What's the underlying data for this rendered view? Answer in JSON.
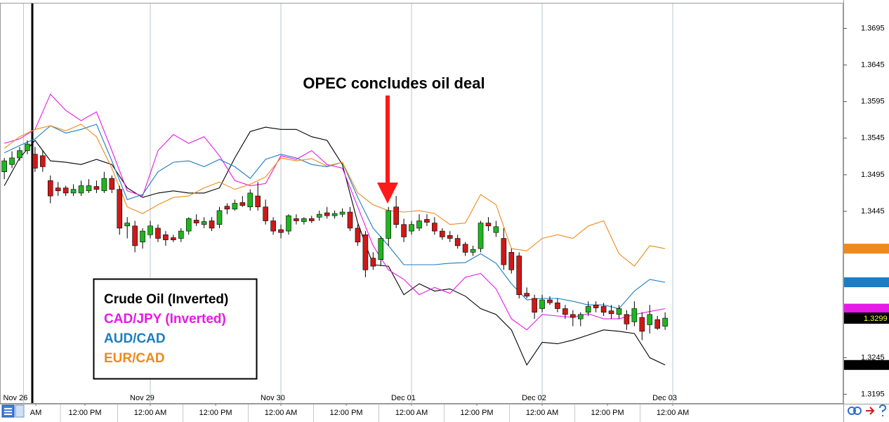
{
  "chart_data": {
    "type": "candlestick",
    "annotation": "OPEC concludes oil deal",
    "xlim": [
      -0.56,
      109.2
    ],
    "ylim": [
      1.3182,
      1.373
    ],
    "yticks": [
      1.3195,
      1.3245,
      1.3445,
      1.3495,
      1.3545,
      1.3595,
      1.3645,
      1.3695
    ],
    "date_ticks": [
      {
        "value": 2.5,
        "label": "Nov 26"
      },
      {
        "value": 19,
        "label": "Nov 29"
      },
      {
        "value": 36,
        "label": "Nov 30"
      },
      {
        "value": 53,
        "label": "Dec 01"
      },
      {
        "value": 70,
        "label": "Dec 02"
      },
      {
        "value": 87,
        "label": "Dec 03"
      }
    ],
    "time_ticks": [
      {
        "value": 4.1,
        "label": "AM"
      },
      {
        "value": 10.5,
        "label": "12:00 PM"
      },
      {
        "value": 19,
        "label": "12:00 AM"
      },
      {
        "value": 27.5,
        "label": "12:00 PM"
      },
      {
        "value": 36,
        "label": "12:00 AM"
      },
      {
        "value": 44.5,
        "label": "12:00 PM"
      },
      {
        "value": 53,
        "label": "12:00 AM"
      },
      {
        "value": 61.5,
        "label": "12:00 PM"
      },
      {
        "value": 70,
        "label": "12:00 AM"
      },
      {
        "value": 78.5,
        "label": "12:00 PM"
      },
      {
        "value": 87,
        "label": "12:00 AM"
      }
    ],
    "up_color": "#1fb51f",
    "down_color": "#d01818",
    "last_price": 1.3299,
    "ohlc": [
      [
        1.3499,
        1.3518,
        1.3489,
        1.3514
      ],
      [
        1.3509,
        1.3527,
        1.3504,
        1.3518
      ],
      [
        1.3518,
        1.3533,
        1.3514,
        1.3528
      ],
      [
        1.3528,
        1.3542,
        1.3523,
        1.3537
      ],
      [
        1.3523,
        1.3533,
        1.3499,
        1.3504
      ],
      [
        1.3521,
        1.3528,
        1.3499,
        1.3506
      ],
      [
        1.3487,
        1.3494,
        1.3456,
        1.3466
      ],
      [
        1.3477,
        1.3485,
        1.3466,
        1.3473
      ],
      [
        1.3477,
        1.348,
        1.3466,
        1.347
      ],
      [
        1.347,
        1.3482,
        1.3466,
        1.3475
      ],
      [
        1.347,
        1.3487,
        1.3466,
        1.348
      ],
      [
        1.3473,
        1.3489,
        1.347,
        1.348
      ],
      [
        1.3479,
        1.3487,
        1.347,
        1.3475
      ],
      [
        1.3473,
        1.3499,
        1.347,
        1.349
      ],
      [
        1.349,
        1.3494,
        1.347,
        1.3475
      ],
      [
        1.3475,
        1.348,
        1.3413,
        1.3422
      ],
      [
        1.3425,
        1.3437,
        1.3408,
        1.3429
      ],
      [
        1.3425,
        1.3432,
        1.3389,
        1.3398
      ],
      [
        1.3403,
        1.3422,
        1.3394,
        1.3418
      ],
      [
        1.3413,
        1.3432,
        1.3408,
        1.3425
      ],
      [
        1.3422,
        1.3427,
        1.3403,
        1.3408
      ],
      [
        1.3413,
        1.3418,
        1.3398,
        1.3406
      ],
      [
        1.3409,
        1.3413,
        1.3403,
        1.3406
      ],
      [
        1.3408,
        1.3422,
        1.3403,
        1.3418
      ],
      [
        1.3418,
        1.3437,
        1.3413,
        1.3435
      ],
      [
        1.3433,
        1.3441,
        1.3425,
        1.3429
      ],
      [
        1.3427,
        1.3437,
        1.3422,
        1.3431
      ],
      [
        1.3432,
        1.3437,
        1.3418,
        1.3422
      ],
      [
        1.3427,
        1.3451,
        1.3422,
        1.3446
      ],
      [
        1.3452,
        1.3456,
        1.3441,
        1.3448
      ],
      [
        1.3448,
        1.3461,
        1.3446,
        1.3456
      ],
      [
        1.3457,
        1.3466,
        1.3451,
        1.3453
      ],
      [
        1.3451,
        1.3475,
        1.3446,
        1.347
      ],
      [
        1.3466,
        1.3485,
        1.3446,
        1.3451
      ],
      [
        1.3451,
        1.3461,
        1.3427,
        1.3432
      ],
      [
        1.3432,
        1.3437,
        1.3413,
        1.3418
      ],
      [
        1.342,
        1.3427,
        1.3408,
        1.3416
      ],
      [
        1.3418,
        1.3441,
        1.3413,
        1.3439
      ],
      [
        1.3435,
        1.3441,
        1.3427,
        1.3432
      ],
      [
        1.3431,
        1.3437,
        1.3427,
        1.3435
      ],
      [
        1.3435,
        1.3439,
        1.3429,
        1.3432
      ],
      [
        1.3437,
        1.3446,
        1.3432,
        1.3441
      ],
      [
        1.3443,
        1.3451,
        1.3435,
        1.3439
      ],
      [
        1.3439,
        1.3446,
        1.3435,
        1.3442
      ],
      [
        1.3441,
        1.3449,
        1.3437,
        1.3444
      ],
      [
        1.3444,
        1.3451,
        1.3418,
        1.3422
      ],
      [
        1.3422,
        1.3427,
        1.3398,
        1.3403
      ],
      [
        1.3413,
        1.3418,
        1.3355,
        1.3365
      ],
      [
        1.3381,
        1.3389,
        1.3365,
        1.337
      ],
      [
        1.3379,
        1.3411,
        1.337,
        1.3408
      ],
      [
        1.3408,
        1.3451,
        1.3398,
        1.3446
      ],
      [
        1.3451,
        1.3466,
        1.3422,
        1.3427
      ],
      [
        1.3427,
        1.3435,
        1.3403,
        1.341
      ],
      [
        1.3418,
        1.3432,
        1.3413,
        1.3427
      ],
      [
        1.3422,
        1.3441,
        1.3418,
        1.3432
      ],
      [
        1.3434,
        1.3441,
        1.3425,
        1.343
      ],
      [
        1.3429,
        1.3437,
        1.3413,
        1.3418
      ],
      [
        1.3418,
        1.3422,
        1.3406,
        1.341
      ],
      [
        1.3412,
        1.3418,
        1.3403,
        1.3408
      ],
      [
        1.3408,
        1.3413,
        1.3394,
        1.3398
      ],
      [
        1.34,
        1.3403,
        1.3384,
        1.3389
      ],
      [
        1.3389,
        1.3398,
        1.3384,
        1.3393
      ],
      [
        1.3394,
        1.3432,
        1.3389,
        1.3429
      ],
      [
        1.3429,
        1.3437,
        1.3418,
        1.3425
      ],
      [
        1.3416,
        1.3432,
        1.341,
        1.3424
      ],
      [
        1.3408,
        1.3422,
        1.3365,
        1.3372
      ],
      [
        1.3389,
        1.3394,
        1.336,
        1.3365
      ],
      [
        1.3384,
        1.3389,
        1.3326,
        1.3331
      ],
      [
        1.3333,
        1.3341,
        1.3326,
        1.3329
      ],
      [
        1.3326,
        1.3331,
        1.3298,
        1.3307
      ],
      [
        1.3312,
        1.3331,
        1.3307,
        1.3324
      ],
      [
        1.3324,
        1.3329,
        1.3317,
        1.332
      ],
      [
        1.332,
        1.3326,
        1.3307,
        1.3312
      ],
      [
        1.3312,
        1.3317,
        1.3298,
        1.3304
      ],
      [
        1.3304,
        1.331,
        1.3288,
        1.33
      ],
      [
        1.3298,
        1.3307,
        1.3288,
        1.3304
      ],
      [
        1.3307,
        1.3322,
        1.3302,
        1.3315
      ],
      [
        1.3317,
        1.3322,
        1.3307,
        1.3313
      ],
      [
        1.3315,
        1.332,
        1.3302,
        1.3307
      ],
      [
        1.3309,
        1.3317,
        1.3298,
        1.3305
      ],
      [
        1.3304,
        1.3317,
        1.3298,
        1.3312
      ],
      [
        1.3304,
        1.331,
        1.3283,
        1.3291
      ],
      [
        1.3294,
        1.3322,
        1.3288,
        1.3312
      ],
      [
        1.33,
        1.3307,
        1.3269,
        1.3281
      ],
      [
        1.329,
        1.3317,
        1.3278,
        1.3304
      ],
      [
        1.3297,
        1.3302,
        1.3283,
        1.3285
      ],
      [
        1.3288,
        1.3307,
        1.3283,
        1.3299
      ]
    ],
    "line_x": [
      0,
      2,
      4,
      6,
      8,
      10,
      12,
      14,
      16,
      18,
      20,
      22,
      24,
      26,
      28,
      30,
      32,
      34,
      36,
      38,
      40,
      42,
      44,
      46,
      48,
      50,
      52,
      54,
      56,
      58,
      60,
      62,
      64,
      66,
      68,
      70,
      72,
      74,
      76,
      78,
      80,
      82,
      84,
      86
    ],
    "series": [
      {
        "name": "Crude Oil (Inverted)",
        "color": "#000000",
        "values": [
          1.348,
          1.3518,
          1.3542,
          1.3514,
          1.3512,
          1.3509,
          1.3516,
          1.3509,
          1.3477,
          1.3464,
          1.347,
          1.3473,
          1.347,
          1.347,
          1.3477,
          1.3518,
          1.3554,
          1.356,
          1.3557,
          1.3557,
          1.3547,
          1.3542,
          1.3509,
          1.3429,
          1.3372,
          1.337,
          1.3331,
          1.3346,
          1.3336,
          1.3339,
          1.3329,
          1.3312,
          1.3304,
          1.3283,
          1.3235,
          1.3266,
          1.3264,
          1.3269,
          1.3276,
          1.3283,
          1.3281,
          1.3278,
          1.3245,
          1.3235
        ]
      },
      {
        "name": "CAD/JPY (Inverted)",
        "color": "#e619e6",
        "values": [
          1.3538,
          1.3544,
          1.3557,
          1.3605,
          1.3583,
          1.3569,
          1.3581,
          1.3528,
          1.3473,
          1.3466,
          1.3528,
          1.355,
          1.3538,
          1.3547,
          1.3521,
          1.3487,
          1.348,
          1.3483,
          1.3521,
          1.3516,
          1.3528,
          1.3509,
          1.3504,
          1.3451,
          1.3398,
          1.3365,
          1.3352,
          1.3331,
          1.3341,
          1.3333,
          1.3355,
          1.336,
          1.3339,
          1.3298,
          1.3283,
          1.3304,
          1.3302,
          1.33,
          1.3305,
          1.3298,
          1.3298,
          1.3304,
          1.3308,
          1.3312
        ]
      },
      {
        "name": "AUD/CAD",
        "color": "#1b7dc3",
        "values": [
          1.3525,
          1.3535,
          1.3544,
          1.3562,
          1.3552,
          1.3557,
          1.3564,
          1.3514,
          1.3461,
          1.3468,
          1.3499,
          1.3512,
          1.3514,
          1.3506,
          1.3516,
          1.3506,
          1.349,
          1.3516,
          1.3523,
          1.3518,
          1.3509,
          1.3506,
          1.3512,
          1.3464,
          1.3422,
          1.3398,
          1.3372,
          1.3372,
          1.3372,
          1.3374,
          1.3375,
          1.3387,
          1.3374,
          1.3346,
          1.3324,
          1.3326,
          1.3326,
          1.3322,
          1.3317,
          1.3317,
          1.3312,
          1.3336,
          1.3352,
          1.3348
        ]
      },
      {
        "name": "EUR/CAD",
        "color": "#ee8a1c",
        "values": [
          1.3531,
          1.3547,
          1.3557,
          1.3562,
          1.3555,
          1.3564,
          1.3547,
          1.3504,
          1.3451,
          1.3442,
          1.3454,
          1.3464,
          1.3466,
          1.3477,
          1.3485,
          1.3475,
          1.3482,
          1.3492,
          1.3518,
          1.3514,
          1.3517,
          1.3507,
          1.3512,
          1.347,
          1.3454,
          1.3446,
          1.3444,
          1.3446,
          1.3442,
          1.3427,
          1.3429,
          1.3468,
          1.3454,
          1.3394,
          1.3391,
          1.3408,
          1.3413,
          1.3408,
          1.3425,
          1.3432,
          1.3387,
          1.337,
          1.3398,
          1.3394
        ]
      }
    ],
    "legend": "lower left"
  }
}
